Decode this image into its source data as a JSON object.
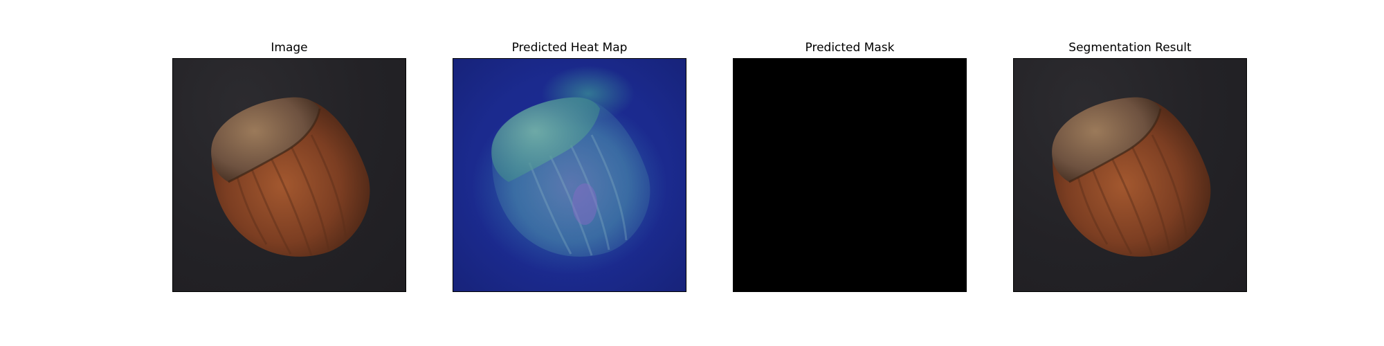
{
  "panels": [
    {
      "title": "Image"
    },
    {
      "title": "Predicted Heat Map"
    },
    {
      "title": "Predicted Mask"
    },
    {
      "title": "Segmentation Result"
    }
  ],
  "colors": {
    "background_dark": "#232226",
    "heatmap_blue": "#1c2c94",
    "mask_black": "#000000",
    "shell_brown": "#8a4a2a",
    "cap_tan": "#8a6a4e"
  },
  "icons": {
    "subject": "hazelnut-image"
  }
}
